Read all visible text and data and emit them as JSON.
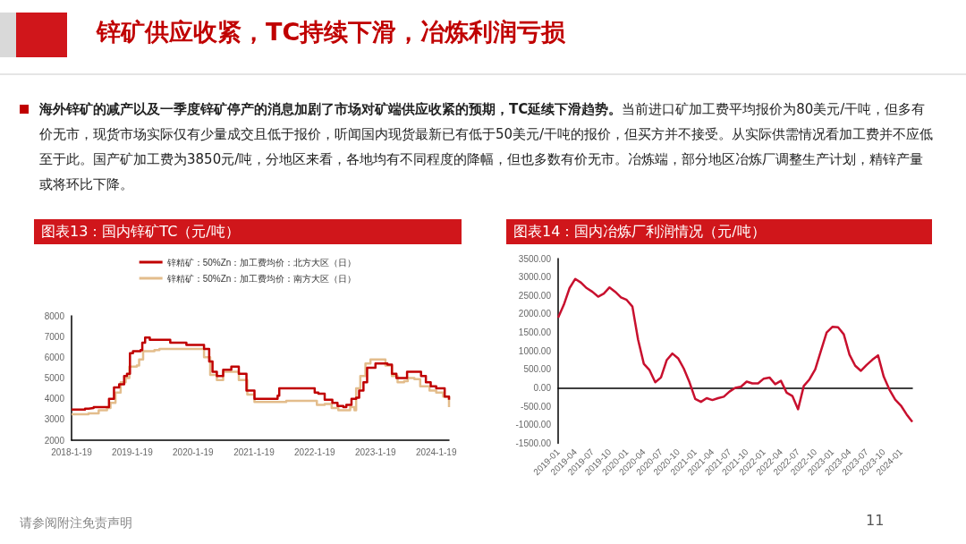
{
  "chart_data": [
    {
      "type": "other",
      "title": "锌矿供应收紧，TC持续下滑，冶炼利润亏损",
      "annotations": [
        "海外锌矿的减产以及一季度锌矿停产的消息加剧了市场对矿端供应收紧的预期，TC延续下滑趋势。",
        "当前进口矿加工费平均报价为80美元/干吨，但多有价无市，现货市场实际仅有少量成交且低于报价，听闻国内现货最新已有低于50美元/干吨的报价，但买方并不接受。从实际供需情况看加工费并不应低至于此。国产矿加工费为3850元/吨，分地区来看，各地均有不同程度的降幅，但也多数有价无市。冶炼端，部分地区冶炼厂调整生产计划，精锌产量或将环比下降。",
        "请参阅附注免责声明",
        "11"
      ]
    },
    {
      "type": "step",
      "title": "图表13：国内锌矿TC（元/吨）",
      "legend": "top",
      "grid": false,
      "xlim": [
        "2018-01-19",
        "2024-04-05"
      ],
      "xticks": [
        {
          "value": "2018-01-19",
          "label": "2018-1-19"
        },
        {
          "value": "2019-01-19",
          "label": "2019-1-19"
        },
        {
          "value": "2020-01-19",
          "label": "2020-1-19"
        },
        {
          "value": "2021-01-19",
          "label": "2021-1-19"
        },
        {
          "value": "2022-01-19",
          "label": "2022-1-19"
        },
        {
          "value": "2023-01-19",
          "label": "2023-1-19"
        },
        {
          "value": "2024-01-19",
          "label": "2024-1-19"
        }
      ],
      "ylim": [
        2000,
        8000
      ],
      "yticks": [
        2000,
        3000,
        4000,
        5000,
        6000,
        7000,
        8000
      ],
      "series": [
        {
          "name": "锌精矿：50%Zn：加工费均价：北方大区（日）",
          "color": "#c00000",
          "x": [
            "2018-01-19",
            "2018-04-10",
            "2018-05-01",
            "2018-06-01",
            "2018-07-27",
            "2018-09-01",
            "2018-10-01",
            "2018-11-01",
            "2018-12-01",
            "2018-12-18",
            "2019-01-05",
            "2019-01-23",
            "2019-03-10",
            "2019-03-20",
            "2019-04-06",
            "2019-05-04",
            "2019-08-26",
            "2019-09-04",
            "2019-11-30",
            "2019-12-10",
            "2020-02-28",
            "2020-03-25",
            "2020-04-25",
            "2020-05-15",
            "2020-06-10",
            "2020-07-18",
            "2020-09-05",
            "2020-10-20",
            "2020-12-05",
            "2021-01-22",
            "2021-05-20",
            "2021-06-10",
            "2021-06-20",
            "2022-01-05",
            "2022-01-19",
            "2022-02-10",
            "2022-03-20",
            "2022-05-05",
            "2022-06-05",
            "2022-07-10",
            "2022-07-28",
            "2022-08-28",
            "2022-09-25",
            "2022-10-13",
            "2022-11-08",
            "2022-11-30",
            "2023-01-19",
            "2023-04-01",
            "2023-04-28",
            "2023-05-25",
            "2023-07-10",
            "2023-07-28",
            "2023-10-01",
            "2023-10-20",
            "2023-11-18",
            "2023-12-17",
            "2024-01-19",
            "2024-02-20",
            "2024-03-10",
            "2024-04-05"
          ],
          "values": [
            3480,
            3520,
            3550,
            3600,
            3600,
            4000,
            4550,
            4700,
            5100,
            5200,
            6200,
            6300,
            6350,
            6700,
            6950,
            6850,
            6850,
            6700,
            6700,
            6600,
            6600,
            6400,
            5800,
            5300,
            5100,
            5400,
            5550,
            5200,
            4400,
            4000,
            4000,
            4150,
            4500,
            4500,
            4300,
            4250,
            3950,
            3800,
            3650,
            3600,
            3700,
            4000,
            4050,
            4400,
            4800,
            5500,
            5700,
            5650,
            5200,
            5000,
            5000,
            5300,
            5300,
            5100,
            4800,
            4600,
            4500,
            4500,
            4100,
            3950
          ]
        },
        {
          "name": "锌精矿：50%Zn：加工费均价：南方大区（日）",
          "color": "#e3bd8c",
          "x": [
            "2018-01-19",
            "2018-05-01",
            "2018-07-01",
            "2018-08-20",
            "2018-09-10",
            "2018-10-10",
            "2018-11-10",
            "2018-12-10",
            "2019-01-01",
            "2019-02-15",
            "2019-03-01",
            "2019-03-25",
            "2019-06-01",
            "2019-07-01",
            "2020-02-28",
            "2020-03-25",
            "2020-05-01",
            "2020-06-10",
            "2020-07-18",
            "2020-08-20",
            "2020-10-20",
            "2020-12-10",
            "2021-01-22",
            "2021-07-01",
            "2021-08-01",
            "2022-01-19",
            "2022-02-01",
            "2022-03-20",
            "2022-05-01",
            "2022-06-10",
            "2022-08-01",
            "2022-08-20",
            "2022-09-15",
            "2022-09-25",
            "2022-10-20",
            "2022-11-20",
            "2022-12-20",
            "2023-02-10",
            "2023-03-20",
            "2023-04-28",
            "2023-06-01",
            "2023-07-10",
            "2023-08-01",
            "2023-09-10",
            "2023-10-15",
            "2023-12-10",
            "2024-01-19",
            "2024-03-01",
            "2024-04-05"
          ],
          "values": [
            3250,
            3300,
            3450,
            3550,
            3800,
            4300,
            4800,
            5000,
            5550,
            5600,
            5900,
            6300,
            6350,
            6400,
            6400,
            6000,
            5150,
            4900,
            5300,
            5300,
            4900,
            4200,
            3850,
            3850,
            3900,
            3900,
            3700,
            3750,
            3550,
            3450,
            3450,
            3600,
            3450,
            4500,
            5100,
            5700,
            5900,
            5900,
            5600,
            5100,
            4800,
            4850,
            5000,
            4950,
            4600,
            4400,
            4300,
            4100,
            3600
          ]
        }
      ]
    },
    {
      "type": "line",
      "title": "图表14：国内冶炼厂利润情况（元/吨）",
      "color": "#c8102e",
      "categories": [
        "2019-01",
        null,
        null,
        "2019-04",
        null,
        null,
        "2019-07",
        null,
        null,
        "2019-10",
        null,
        null,
        "2020-01",
        null,
        null,
        "2020-04",
        null,
        null,
        "2020-07",
        null,
        null,
        "2020-10",
        null,
        null,
        "2021-01",
        null,
        null,
        "2021-04",
        null,
        null,
        "2021-07",
        null,
        null,
        "2021-10",
        null,
        null,
        "2022-01",
        null,
        null,
        "2022-04",
        null,
        null,
        "2022-07",
        null,
        null,
        "2022-10",
        null,
        null,
        "2023-01",
        null,
        null,
        "2023-04",
        null,
        null,
        "2023-07",
        null,
        null,
        "2023-10",
        null,
        null,
        "2024-01",
        null,
        null
      ],
      "ylim": [
        -1500,
        3500
      ],
      "yticks": [
        {
          "value": -1500,
          "label": "-1500.00"
        },
        {
          "value": -1000,
          "label": "-1000.00"
        },
        {
          "value": -500,
          "label": "-500.00"
        },
        {
          "value": 0,
          "label": "0.00"
        },
        {
          "value": 500,
          "label": "500.00"
        },
        {
          "value": 1000,
          "label": "1000.00"
        },
        {
          "value": 1500,
          "label": "1500.00"
        },
        {
          "value": 2000,
          "label": "2000.00"
        },
        {
          "value": 2500,
          "label": "2500.00"
        },
        {
          "value": 3000,
          "label": "3000.00"
        },
        {
          "value": 3500,
          "label": "3500.00"
        }
      ],
      "values": [
        1900,
        2250,
        2700,
        2950,
        2850,
        2700,
        2600,
        2470,
        2550,
        2720,
        2600,
        2450,
        2380,
        2200,
        1300,
        650,
        480,
        150,
        280,
        750,
        930,
        800,
        520,
        150,
        -300,
        -380,
        -280,
        -330,
        -280,
        -240,
        -100,
        0,
        30,
        170,
        120,
        120,
        250,
        280,
        100,
        190,
        -130,
        -220,
        -580,
        50,
        230,
        500,
        1000,
        1500,
        1650,
        1640,
        1450,
        900,
        600,
        460,
        620,
        760,
        880,
        300,
        -50,
        -320,
        -480,
        -720,
        -920
      ]
    }
  ]
}
